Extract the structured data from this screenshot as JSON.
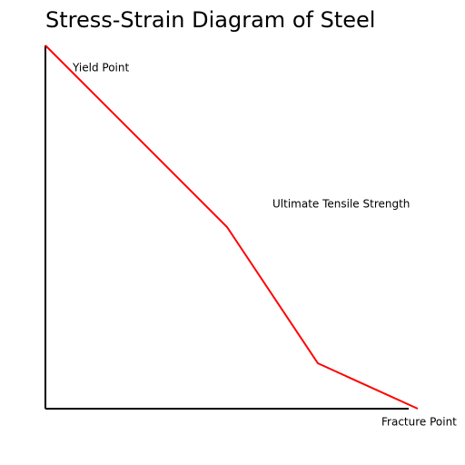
{
  "chart_data": {
    "type": "line",
    "title": "Stress-Strain Diagram of Steel",
    "xlabel": "",
    "ylabel": "",
    "xlim": [
      0,
      400
    ],
    "ylim": [
      0,
      400
    ],
    "grid": false,
    "legend": "none",
    "series": [
      {
        "color": "#ff0000",
        "x": [
          0,
          200,
          300,
          410
        ],
        "y": [
          400,
          200,
          50,
          0
        ]
      }
    ],
    "annotations": [
      {
        "text": "Yield Point",
        "x": 30,
        "y": 375
      },
      {
        "text": "Ultimate Tensile Strength",
        "x": 250,
        "y": 225
      },
      {
        "text": "Fracture Point",
        "x": 370,
        "y": -15
      }
    ],
    "axis_color": "#000000"
  }
}
